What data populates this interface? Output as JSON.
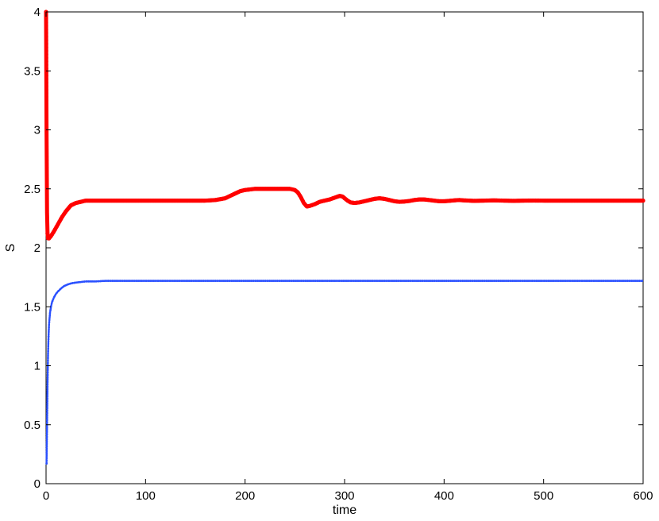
{
  "chart_data": {
    "type": "line",
    "title": "",
    "xlabel": "time",
    "ylabel": "S",
    "xlim": [
      0,
      600
    ],
    "ylim": [
      0,
      4
    ],
    "xticks": [
      0,
      100,
      200,
      300,
      400,
      500,
      600
    ],
    "yticks": [
      0,
      0.5,
      1,
      1.5,
      2,
      2.5,
      3,
      3.5,
      4
    ],
    "grid": false,
    "legend": "none",
    "series": [
      {
        "color": "#ff0000",
        "style": "thick-markers",
        "x": [
          0,
          0.5,
          1,
          1.5,
          2,
          3,
          5,
          8,
          12,
          16,
          20,
          25,
          30,
          35,
          40,
          50,
          60,
          80,
          100,
          120,
          140,
          160,
          170,
          180,
          185,
          190,
          195,
          200,
          205,
          210,
          220,
          230,
          240,
          245,
          250,
          253,
          256,
          259,
          262,
          265,
          270,
          275,
          280,
          285,
          290,
          295,
          298,
          300,
          303,
          306,
          310,
          315,
          320,
          325,
          330,
          335,
          340,
          345,
          350,
          355,
          360,
          365,
          370,
          375,
          380,
          385,
          390,
          395,
          400,
          405,
          410,
          415,
          420,
          430,
          440,
          450,
          460,
          470,
          480,
          490,
          500,
          520,
          540,
          560,
          580,
          600
        ],
        "y": [
          4.0,
          3.0,
          2.3,
          2.12,
          2.08,
          2.08,
          2.1,
          2.14,
          2.2,
          2.26,
          2.31,
          2.36,
          2.38,
          2.39,
          2.4,
          2.4,
          2.4,
          2.4,
          2.4,
          2.4,
          2.4,
          2.4,
          2.405,
          2.42,
          2.44,
          2.46,
          2.48,
          2.49,
          2.495,
          2.5,
          2.5,
          2.5,
          2.5,
          2.5,
          2.49,
          2.47,
          2.43,
          2.38,
          2.35,
          2.355,
          2.37,
          2.39,
          2.4,
          2.41,
          2.425,
          2.44,
          2.435,
          2.42,
          2.4,
          2.385,
          2.38,
          2.385,
          2.395,
          2.405,
          2.415,
          2.42,
          2.415,
          2.405,
          2.395,
          2.39,
          2.392,
          2.397,
          2.405,
          2.41,
          2.41,
          2.405,
          2.4,
          2.395,
          2.395,
          2.398,
          2.402,
          2.405,
          2.402,
          2.398,
          2.4,
          2.402,
          2.4,
          2.398,
          2.4,
          2.401,
          2.4,
          2.4,
          2.4,
          2.4,
          2.4,
          2.4
        ]
      },
      {
        "color": "#2a50ff",
        "style": "dotted-markers",
        "x": [
          0.5,
          1,
          1.5,
          2,
          2.5,
          3,
          4,
          5,
          6,
          8,
          10,
          12,
          15,
          18,
          22,
          26,
          30,
          35,
          40,
          50,
          60,
          80,
          100,
          150,
          200,
          250,
          300,
          350,
          400,
          450,
          500,
          550,
          600
        ],
        "y": [
          0.17,
          0.5,
          0.85,
          1.1,
          1.25,
          1.35,
          1.45,
          1.5,
          1.54,
          1.58,
          1.61,
          1.63,
          1.655,
          1.675,
          1.69,
          1.7,
          1.705,
          1.71,
          1.715,
          1.715,
          1.72,
          1.72,
          1.72,
          1.72,
          1.72,
          1.72,
          1.72,
          1.72,
          1.72,
          1.72,
          1.72,
          1.72,
          1.72
        ]
      }
    ]
  }
}
